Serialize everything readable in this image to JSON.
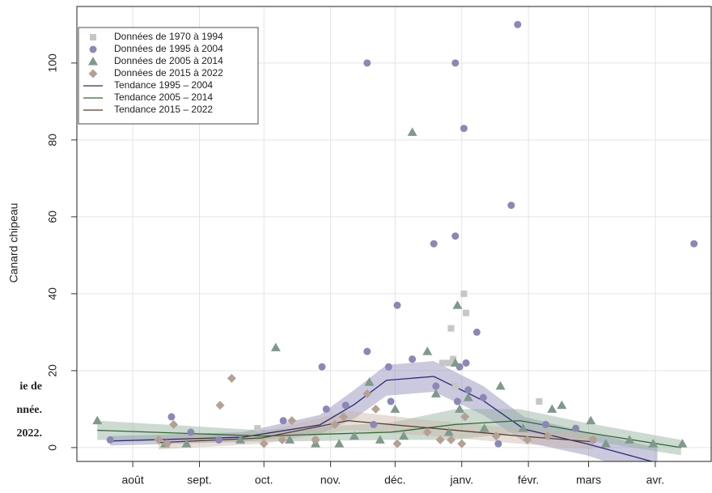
{
  "chart_data": {
    "type": "scatter",
    "y_label": "Canard chipeau",
    "caption": [
      "ie de",
      "nnée.",
      "2022."
    ],
    "xlim": [
      -26,
      269
    ],
    "ylim": [
      -3.6,
      114.7
    ],
    "xticks": [
      {
        "value": 0,
        "label": "août"
      },
      {
        "value": 31,
        "label": "sept."
      },
      {
        "value": 61,
        "label": "oct."
      },
      {
        "value": 92,
        "label": "nov."
      },
      {
        "value": 122,
        "label": "déc."
      },
      {
        "value": 153,
        "label": "janv."
      },
      {
        "value": 184,
        "label": "févr."
      },
      {
        "value": 212,
        "label": "mars"
      },
      {
        "value": 243,
        "label": "avr."
      }
    ],
    "yticks": [
      0,
      20,
      40,
      60,
      80,
      100
    ],
    "grid": true,
    "legend": "top-left",
    "series": [
      {
        "name": "Données de 1970 à 1994",
        "marker": "square",
        "color": "#c6c6c6",
        "x": [
          58,
          144,
          147,
          148,
          149,
          150,
          154,
          155,
          189
        ],
        "values": [
          5,
          22,
          22,
          31,
          23,
          16,
          40,
          35,
          12
        ]
      },
      {
        "name": "Données de 1995 à 2004",
        "marker": "circle",
        "color": "#8c88b6",
        "x": [
          -10.5,
          18,
          27,
          40,
          70,
          85,
          88,
          90,
          99,
          109,
          109,
          112,
          119,
          120,
          123,
          130,
          140,
          141,
          150,
          150,
          151,
          152,
          154,
          155,
          156,
          160,
          163,
          170,
          176,
          179,
          192,
          206,
          214,
          261
        ],
        "values": [
          2,
          8,
          4,
          2,
          7,
          2,
          21,
          10,
          11,
          100,
          25,
          6,
          21,
          12,
          37,
          23,
          53,
          16,
          100,
          55,
          12,
          21,
          83,
          22,
          15,
          30,
          13,
          1,
          63,
          110,
          6,
          5,
          2,
          53
        ]
      },
      {
        "name": "Données de 2005 à 2014",
        "marker": "triangle",
        "color": "#7f9a8c",
        "x": [
          -16.5,
          15,
          25,
          50,
          66.5,
          73,
          85,
          96,
          103,
          110,
          115,
          122,
          126,
          130,
          137,
          141,
          147,
          150,
          151,
          152,
          156,
          163.5,
          171,
          181.5,
          195,
          199.5,
          213,
          220,
          231,
          242,
          255.6
        ],
        "values": [
          7,
          1,
          1,
          2,
          26,
          2,
          1,
          1,
          3,
          17,
          2,
          10,
          3,
          82,
          25,
          14,
          4,
          22,
          37,
          10,
          13,
          5,
          16,
          5,
          10,
          11,
          7,
          1,
          2,
          1,
          1
        ]
      },
      {
        "name": "Données de 2015 à 2022",
        "marker": "diamond",
        "color": "#b5a193",
        "x": [
          12,
          16,
          19,
          40.6,
          46,
          61,
          69.5,
          74,
          85,
          94,
          98,
          109,
          113,
          123,
          137,
          143,
          148,
          153,
          154.5,
          169,
          183.5,
          193,
          214
        ],
        "values": [
          2,
          1,
          6,
          11,
          18,
          1,
          2,
          7,
          2,
          6,
          8,
          14,
          10,
          1,
          4,
          2,
          2,
          1,
          8,
          3,
          2,
          3,
          2
        ]
      }
    ],
    "trends": [
      {
        "name": "Tendance 1995 – 2004",
        "color": "#2a2a7c",
        "band_color": "#8c88b6",
        "x": [
          -10.5,
          51,
          87,
          103,
          118,
          140,
          163,
          182,
          211,
          244
        ],
        "values": [
          1.7,
          2.7,
          5.9,
          11.2,
          17.5,
          18.5,
          12.2,
          4.8,
          1,
          -4
        ],
        "band_lower": [
          0.5,
          1.5,
          3.5,
          7.5,
          13.5,
          14.5,
          8.5,
          1.5,
          -2,
          -8
        ],
        "band_upper": [
          3,
          4,
          8.5,
          15,
          21.5,
          22.5,
          16,
          8,
          4,
          0
        ]
      },
      {
        "name": "Tendance 2005 – 2014",
        "color": "#2e6b2e",
        "band_color": "#8fae9c",
        "x": [
          -16.5,
          60,
          120,
          150,
          180,
          210,
          255
        ],
        "values": [
          4.5,
          3,
          4,
          6,
          7,
          4,
          0
        ],
        "band_lower": [
          2,
          1.5,
          2,
          2,
          4,
          2,
          -2
        ],
        "band_upper": [
          7,
          4.5,
          6.5,
          10,
          10,
          6.5,
          2
        ]
      },
      {
        "name": "Tendance 2015 – 2022",
        "color": "#5a3a2a",
        "band_color": "#c8b5a6",
        "x": [
          12,
          60,
          100,
          140,
          180,
          214
        ],
        "values": [
          1.3,
          2.5,
          7,
          5,
          3,
          1.5
        ],
        "band_lower": [
          -0.5,
          1,
          4.5,
          3,
          1,
          -0.5
        ],
        "band_upper": [
          3,
          4,
          9.5,
          7,
          5,
          3.5
        ]
      }
    ]
  }
}
